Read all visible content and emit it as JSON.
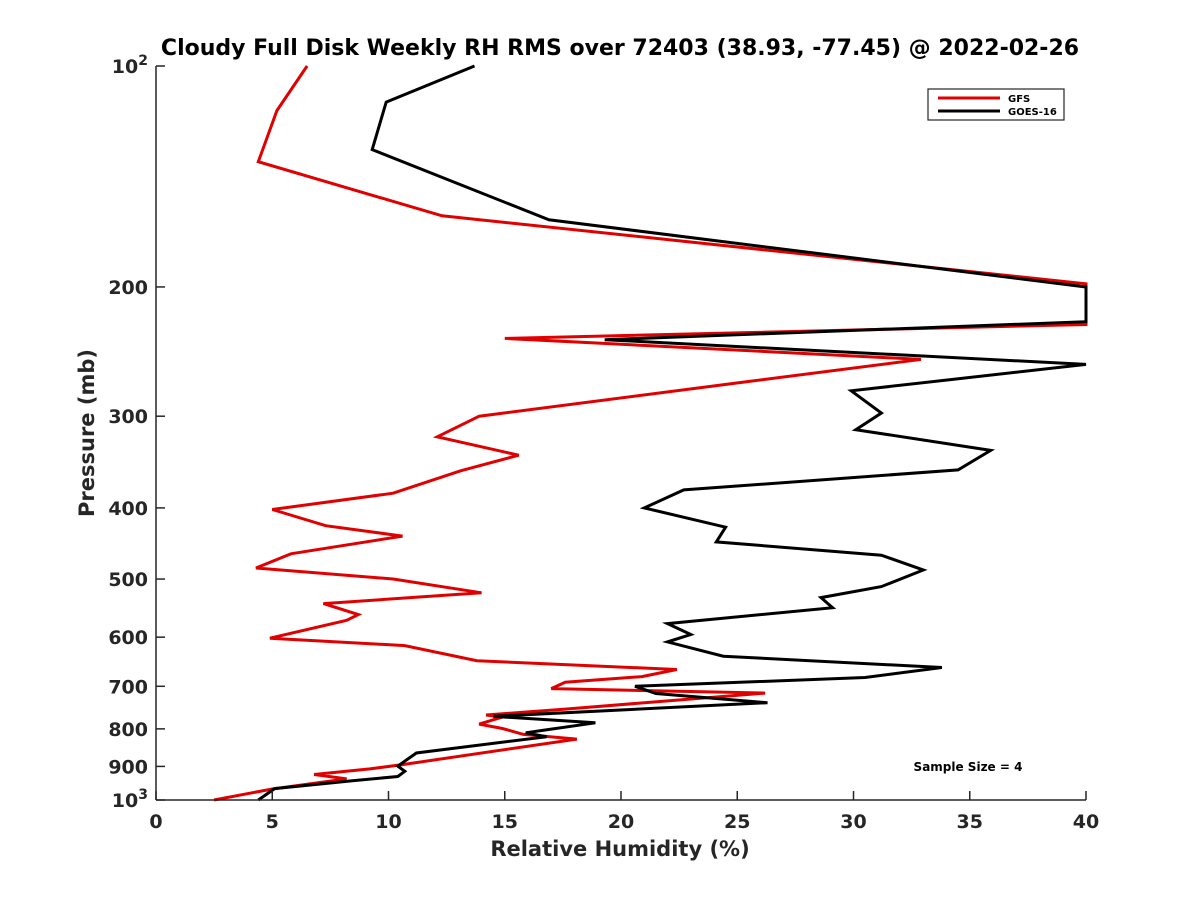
{
  "chart_data": {
    "type": "line",
    "title": "Cloudy Full Disk Weekly RH RMS over 72403 (38.93, -77.45) @ 2022-02-26",
    "xlabel": "Relative Humidity (%)",
    "ylabel": "Pressure (mb)",
    "xlim": [
      0,
      40
    ],
    "ylim": [
      100,
      1000
    ],
    "yscale": "log",
    "y_reversed": true,
    "grid": false,
    "legend_position": "top-right",
    "x_ticks": [
      "0",
      "5",
      "10",
      "15",
      "20",
      "25",
      "30",
      "35",
      "40"
    ],
    "y_ticks": [
      {
        "value": 100,
        "label_base": "10",
        "label_exp": "2"
      },
      {
        "value": 200,
        "label": "200"
      },
      {
        "value": 300,
        "label": "300"
      },
      {
        "value": 400,
        "label": "400"
      },
      {
        "value": 500,
        "label": "500"
      },
      {
        "value": 600,
        "label": "600"
      },
      {
        "value": 700,
        "label": "700"
      },
      {
        "value": 800,
        "label": "800"
      },
      {
        "value": 900,
        "label": "900"
      },
      {
        "value": 1000,
        "label_base": "10",
        "label_exp": "3"
      }
    ],
    "annotation": "Sample Size = 4",
    "series": [
      {
        "name": "GFS",
        "color": "#e00000",
        "points": [
          [
            6.5,
            100
          ],
          [
            5.2,
            115
          ],
          [
            4.4,
            135
          ],
          [
            12.3,
            160
          ],
          [
            40,
            198
          ],
          [
            40,
            225
          ],
          [
            15,
            235
          ],
          [
            32.9,
            251
          ],
          [
            25.1,
            270
          ],
          [
            13.9,
            300
          ],
          [
            12.1,
            320
          ],
          [
            15.6,
            339
          ],
          [
            13.1,
            356
          ],
          [
            10.2,
            382
          ],
          [
            5,
            402
          ],
          [
            7.3,
            423
          ],
          [
            10.6,
            437
          ],
          [
            5.8,
            462
          ],
          [
            4.3,
            483
          ],
          [
            10.2,
            500
          ],
          [
            14,
            522
          ],
          [
            7.2,
            540
          ],
          [
            8.7,
            559
          ],
          [
            8.2,
            569
          ],
          [
            4.9,
            602
          ],
          [
            10.7,
            616
          ],
          [
            13.8,
            646
          ],
          [
            22.4,
            664
          ],
          [
            20.9,
            679
          ],
          [
            17.6,
            691
          ],
          [
            17,
            705
          ],
          [
            26.2,
            715
          ],
          [
            17.6,
            752
          ],
          [
            14.2,
            766
          ],
          [
            14.9,
            771
          ],
          [
            13.9,
            788
          ],
          [
            14.9,
            799
          ],
          [
            15.8,
            814
          ],
          [
            18.1,
            826
          ],
          [
            10.6,
            895
          ],
          [
            9.2,
            907
          ],
          [
            6.8,
            923
          ],
          [
            8.2,
            936
          ],
          [
            5,
            966
          ],
          [
            2.5,
            1000
          ]
        ]
      },
      {
        "name": "GOES-16",
        "color": "#000000",
        "points": [
          [
            13.7,
            100
          ],
          [
            9.9,
            112
          ],
          [
            9.3,
            130
          ],
          [
            16.9,
            162
          ],
          [
            40,
            200
          ],
          [
            40,
            223
          ],
          [
            19.3,
            236
          ],
          [
            40,
            255
          ],
          [
            29.9,
            277
          ],
          [
            31.2,
            297
          ],
          [
            30.1,
            313
          ],
          [
            35.9,
            334
          ],
          [
            34.5,
            355
          ],
          [
            22.7,
            378
          ],
          [
            21,
            400
          ],
          [
            24.5,
            425
          ],
          [
            24.1,
            445
          ],
          [
            31.2,
            464
          ],
          [
            33,
            486
          ],
          [
            31.2,
            512
          ],
          [
            28.6,
            530
          ],
          [
            29.1,
            547
          ],
          [
            22,
            575
          ],
          [
            23,
            595
          ],
          [
            22,
            609
          ],
          [
            24.4,
            637
          ],
          [
            33.8,
            660
          ],
          [
            30.5,
            681
          ],
          [
            20.6,
            700
          ],
          [
            21.5,
            716
          ],
          [
            26.3,
            737
          ],
          [
            14.5,
            769
          ],
          [
            18.9,
            785
          ],
          [
            16.7,
            803
          ],
          [
            15.9,
            810
          ],
          [
            16.8,
            820
          ],
          [
            11.2,
            863
          ],
          [
            10.4,
            899
          ],
          [
            10.7,
            914
          ],
          [
            10.4,
            929
          ],
          [
            8.5,
            941
          ],
          [
            5.1,
            965
          ],
          [
            4.4,
            1000
          ]
        ]
      }
    ]
  }
}
